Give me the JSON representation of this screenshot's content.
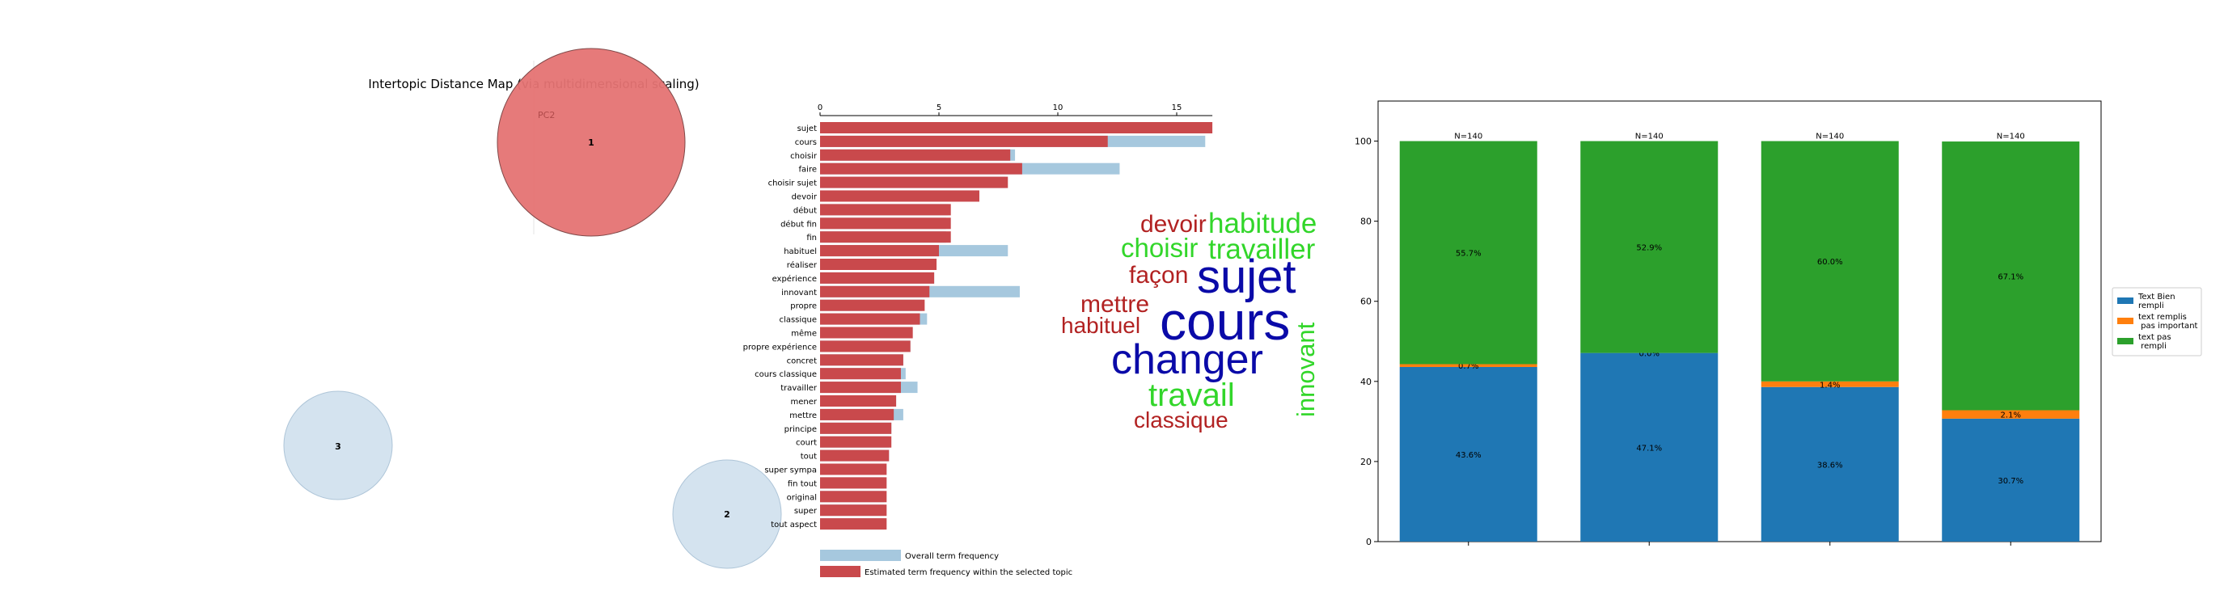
{
  "chart_data": [
    {
      "type": "scatter",
      "title": "Intertopic Distance Map (via multidimensional scaling)",
      "axis_label": "PC2",
      "topics": [
        {
          "label": "1",
          "selected": true
        },
        {
          "label": "3",
          "selected": false
        },
        {
          "label": "2",
          "selected": false
        }
      ]
    },
    {
      "type": "bar",
      "orientation": "horizontal",
      "xticks": [
        0,
        5,
        10,
        15
      ],
      "xlim": [
        0,
        16.5
      ],
      "categories": [
        "sujet",
        "cours",
        "choisir",
        "faire",
        "choisir sujet",
        "devoir",
        "début",
        "début fin",
        "fin",
        "habituel",
        "réaliser",
        "expérience",
        "innovant",
        "propre",
        "classique",
        "même",
        "propre expérience",
        "concret",
        "cours classique",
        "travailler",
        "mener",
        "mettre",
        "principe",
        "court",
        "tout",
        "super sympa",
        "fin tout",
        "original",
        "super",
        "tout aspect"
      ],
      "series": [
        {
          "name": "Overall term frequency",
          "color": "#a6c8de",
          "values": [
            16.2,
            16.2,
            8.2,
            12.6,
            7.8,
            6.2,
            5.4,
            5.3,
            5.3,
            7.9,
            4.8,
            4.8,
            8.4,
            4.3,
            4.5,
            3.8,
            3.8,
            3.5,
            3.6,
            4.1,
            3.2,
            3.5,
            3.0,
            2.9,
            2.9,
            2.7,
            2.7,
            2.7,
            2.7,
            2.7
          ]
        },
        {
          "name": "Estimated term frequency within the selected topic",
          "color": "#c9494c",
          "values": [
            16.5,
            12.1,
            8.0,
            8.5,
            7.9,
            6.7,
            5.5,
            5.5,
            5.5,
            5.0,
            4.9,
            4.8,
            4.6,
            4.4,
            4.2,
            3.9,
            3.8,
            3.5,
            3.4,
            3.4,
            3.2,
            3.1,
            3.0,
            3.0,
            2.9,
            2.8,
            2.8,
            2.8,
            2.8,
            2.8
          ]
        }
      ]
    },
    {
      "type": "wordcloud",
      "words": [
        {
          "text": "devoir",
          "color": "#b22222"
        },
        {
          "text": "habitude",
          "color": "#32d62a"
        },
        {
          "text": "choisir",
          "color": "#32d62a"
        },
        {
          "text": "travailler",
          "color": "#32d62a"
        },
        {
          "text": "façon",
          "color": "#b22222"
        },
        {
          "text": "sujet",
          "color": "#0a0aa8"
        },
        {
          "text": "mettre",
          "color": "#b22222"
        },
        {
          "text": "cours",
          "color": "#0a0aa8"
        },
        {
          "text": "habituel",
          "color": "#b22222"
        },
        {
          "text": "changer",
          "color": "#0a0aa8"
        },
        {
          "text": "innovant",
          "color": "#32d62a"
        },
        {
          "text": "travail",
          "color": "#32d62a"
        },
        {
          "text": "classique",
          "color": "#b22222"
        }
      ]
    },
    {
      "type": "bar",
      "stacked": true,
      "ylim": [
        0,
        110
      ],
      "yticks": [
        0,
        20,
        40,
        60,
        80,
        100
      ],
      "categories": [
        "",
        "",
        "",
        ""
      ],
      "n_labels": [
        "N=140",
        "N=140",
        "N=140",
        "N=140"
      ],
      "series": [
        {
          "name": "Text Bien\nrempli",
          "color": "#1f77b4",
          "values": [
            43.6,
            47.1,
            38.6,
            30.7
          ],
          "labels": [
            "43.6%",
            "47.1%",
            "38.6%",
            "30.7%"
          ]
        },
        {
          "name": "text remplis\n pas important",
          "color": "#ff7f0e",
          "values": [
            0.7,
            0.0,
            1.4,
            2.1
          ],
          "labels": [
            "0.7%",
            "0.0%",
            "1.4%",
            "2.1%"
          ]
        },
        {
          "name": "text pas\n rempli",
          "color": "#2ca02c",
          "values": [
            55.7,
            52.9,
            60.0,
            67.1
          ],
          "labels": [
            "55.7%",
            "52.9%",
            "60.0%",
            "67.1%"
          ]
        }
      ],
      "legend": "right"
    }
  ]
}
